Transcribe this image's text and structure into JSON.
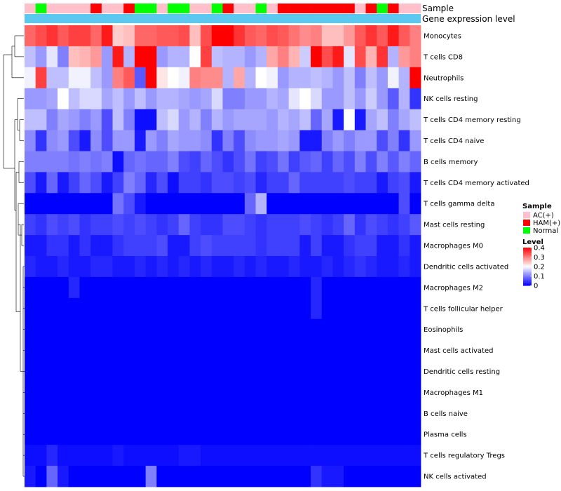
{
  "chart_data": {
    "type": "heatmap",
    "column_annotations": [
      {
        "name": "Sample",
        "label": "Sample"
      },
      {
        "name": "Gene expression level",
        "label": "Gene expression level"
      }
    ],
    "sample_groups": [
      "AC(+)",
      "Normal",
      "AC(+)",
      "AC(+)",
      "AC(+)",
      "AC(+)",
      "HAM(+)",
      "AC(+)",
      "AC(+)",
      "HAM(+)",
      "Normal",
      "Normal",
      "AC(+)",
      "Normal",
      "Normal",
      "AC(+)",
      "AC(+)",
      "Normal",
      "HAM(+)",
      "AC(+)",
      "AC(+)",
      "Normal",
      "AC(+)",
      "HAM(+)",
      "HAM(+)",
      "HAM(+)",
      "HAM(+)",
      "HAM(+)",
      "HAM(+)",
      "HAM(+)",
      "AC(+)",
      "HAM(+)",
      "Normal",
      "HAM(+)",
      "AC(+)",
      "AC(+)"
    ],
    "rows": [
      "Monocytes",
      "T cells CD8",
      "Neutrophils",
      "NK cells resting",
      "T cells CD4 memory resting",
      "T cells CD4 naive",
      "B cells memory",
      "T cells CD4 memory activated",
      "T cells gamma delta",
      "Mast cells resting",
      "Macrophages M0",
      "Dendritic cells activated",
      "Macrophages M2",
      "T cells follicular helper",
      "Eosinophils",
      "Mast cells activated",
      "Dendritic cells resting",
      "Macrophages M1",
      "B cells naive",
      "Plasma cells",
      "T cells regulatory  Tregs",
      "NK cells activated"
    ],
    "values": [
      [
        0.32,
        0.34,
        0.36,
        0.33,
        0.35,
        0.35,
        0.32,
        0.38,
        0.24,
        0.25,
        0.32,
        0.32,
        0.33,
        0.33,
        0.34,
        0.25,
        0.34,
        0.4,
        0.4,
        0.36,
        0.33,
        0.32,
        0.34,
        0.33,
        0.31,
        0.29,
        0.3,
        0.25,
        0.25,
        0.28,
        0.33,
        0.36,
        0.33,
        0.38,
        0.33,
        0.3
      ],
      [
        0.15,
        0.12,
        0.18,
        0.1,
        0.25,
        0.26,
        0.28,
        0.12,
        0.38,
        0.14,
        0.4,
        0.4,
        0.12,
        0.14,
        0.14,
        0.2,
        0.35,
        0.15,
        0.14,
        0.14,
        0.12,
        0.14,
        0.27,
        0.3,
        0.26,
        0.16,
        0.4,
        0.34,
        0.38,
        0.18,
        0.34,
        0.26,
        0.36,
        0.14,
        0.28,
        0.3
      ],
      [
        0.19,
        0.35,
        0.15,
        0.15,
        0.19,
        0.19,
        0.15,
        0.12,
        0.3,
        0.33,
        0.07,
        0.4,
        0.22,
        0.2,
        0.19,
        0.3,
        0.29,
        0.29,
        0.14,
        0.27,
        0.14,
        0.2,
        0.19,
        0.12,
        0.14,
        0.14,
        0.15,
        0.14,
        0.12,
        0.15,
        0.1,
        0.15,
        0.12,
        0.19,
        0.14,
        0.4
      ],
      [
        0.12,
        0.12,
        0.13,
        0.2,
        0.15,
        0.17,
        0.17,
        0.13,
        0.15,
        0.12,
        0.15,
        0.12,
        0.14,
        0.14,
        0.13,
        0.12,
        0.13,
        0.17,
        0.1,
        0.1,
        0.12,
        0.12,
        0.14,
        0.13,
        0.18,
        0.2,
        0.17,
        0.12,
        0.12,
        0.15,
        0.12,
        0.16,
        0.12,
        0.07,
        0.14,
        0.04
      ],
      [
        0.15,
        0.15,
        0.1,
        0.13,
        0.12,
        0.1,
        0.12,
        0.06,
        0.15,
        0.1,
        0.01,
        0.01,
        0.15,
        0.17,
        0.12,
        0.14,
        0.1,
        0.14,
        0.12,
        0.13,
        0.13,
        0.13,
        0.12,
        0.14,
        0.13,
        0.15,
        0.08,
        0.13,
        0.02,
        0.2,
        0.02,
        0.13,
        0.15,
        0.1,
        0.13,
        0.15
      ],
      [
        0.11,
        0.04,
        0.11,
        0.12,
        0.06,
        0.02,
        0.11,
        0.06,
        0.12,
        0.12,
        0.02,
        0.12,
        0.1,
        0.13,
        0.12,
        0.12,
        0.11,
        0.04,
        0.1,
        0.06,
        0.11,
        0.12,
        0.12,
        0.13,
        0.12,
        0.02,
        0.02,
        0.1,
        0.12,
        0.1,
        0.12,
        0.12,
        0.06,
        0.1,
        0.04,
        0.12
      ],
      [
        0.1,
        0.1,
        0.1,
        0.1,
        0.09,
        0.1,
        0.09,
        0.1,
        0.01,
        0.08,
        0.09,
        0.08,
        0.08,
        0.1,
        0.06,
        0.05,
        0.08,
        0.06,
        0.04,
        0.06,
        0.09,
        0.05,
        0.06,
        0.09,
        0.05,
        0.07,
        0.08,
        0.05,
        0.08,
        0.06,
        0.1,
        0.06,
        0.1,
        0.07,
        0.1,
        0.08
      ],
      [
        0.06,
        0.02,
        0.08,
        0.02,
        0.05,
        0.08,
        0.06,
        0.02,
        0.05,
        0.1,
        0.08,
        0.03,
        0.06,
        0.01,
        0.05,
        0.05,
        0.04,
        0.06,
        0.06,
        0.05,
        0.06,
        0.03,
        0.05,
        0.05,
        0.08,
        0.05,
        0.05,
        0.05,
        0.05,
        0.06,
        0.05,
        0.05,
        0.02,
        0.05,
        0.06,
        0.02
      ],
      [
        0.0,
        0.0,
        0.0,
        0.0,
        0.0,
        0.0,
        0.0,
        0.0,
        0.09,
        0.06,
        0.02,
        0.0,
        0.0,
        0.0,
        0.0,
        0.0,
        0.0,
        0.0,
        0.0,
        0.0,
        0.08,
        0.14,
        0.0,
        0.0,
        0.0,
        0.0,
        0.0,
        0.0,
        0.0,
        0.0,
        0.0,
        0.0,
        0.0,
        0.0,
        0.06,
        0.0
      ],
      [
        0.05,
        0.04,
        0.06,
        0.05,
        0.06,
        0.04,
        0.05,
        0.05,
        0.06,
        0.05,
        0.06,
        0.05,
        0.04,
        0.05,
        0.08,
        0.05,
        0.04,
        0.04,
        0.06,
        0.06,
        0.05,
        0.04,
        0.05,
        0.05,
        0.05,
        0.06,
        0.05,
        0.04,
        0.05,
        0.08,
        0.04,
        0.06,
        0.05,
        0.04,
        0.05,
        0.07
      ],
      [
        0.02,
        0.02,
        0.04,
        0.04,
        0.02,
        0.04,
        0.02,
        0.02,
        0.04,
        0.05,
        0.05,
        0.05,
        0.06,
        0.02,
        0.02,
        0.05,
        0.06,
        0.05,
        0.05,
        0.05,
        0.05,
        0.04,
        0.05,
        0.05,
        0.05,
        0.02,
        0.05,
        0.02,
        0.02,
        0.04,
        0.05,
        0.05,
        0.02,
        0.02,
        0.04,
        0.02
      ],
      [
        0.03,
        0.02,
        0.02,
        0.03,
        0.02,
        0.02,
        0.03,
        0.03,
        0.02,
        0.02,
        0.03,
        0.02,
        0.03,
        0.02,
        0.03,
        0.02,
        0.03,
        0.02,
        0.02,
        0.03,
        0.02,
        0.03,
        0.02,
        0.02,
        0.03,
        0.02,
        0.02,
        0.03,
        0.02,
        0.03,
        0.04,
        0.03,
        0.02,
        0.02,
        0.03,
        0.02
      ],
      [
        0.0,
        0.0,
        0.0,
        0.0,
        0.03,
        0.0,
        0.0,
        0.0,
        0.0,
        0.0,
        0.0,
        0.0,
        0.0,
        0.0,
        0.0,
        0.0,
        0.0,
        0.0,
        0.0,
        0.0,
        0.0,
        0.0,
        0.0,
        0.0,
        0.0,
        0.0,
        0.03,
        0.0,
        0.0,
        0.0,
        0.0,
        0.0,
        0.0,
        0.0,
        0.0,
        0.0
      ],
      [
        0.0,
        0.0,
        0.0,
        0.0,
        0.0,
        0.0,
        0.0,
        0.0,
        0.0,
        0.0,
        0.0,
        0.0,
        0.0,
        0.0,
        0.0,
        0.0,
        0.0,
        0.0,
        0.0,
        0.0,
        0.0,
        0.0,
        0.0,
        0.0,
        0.0,
        0.0,
        0.03,
        0.0,
        0.0,
        0.0,
        0.0,
        0.0,
        0.0,
        0.0,
        0.0,
        0.0
      ],
      [
        0.0,
        0.0,
        0.0,
        0.0,
        0.0,
        0.0,
        0.0,
        0.0,
        0.0,
        0.0,
        0.0,
        0.0,
        0.0,
        0.0,
        0.0,
        0.0,
        0.0,
        0.0,
        0.0,
        0.0,
        0.0,
        0.0,
        0.0,
        0.0,
        0.0,
        0.0,
        0.0,
        0.0,
        0.0,
        0.0,
        0.0,
        0.0,
        0.0,
        0.0,
        0.0,
        0.0
      ],
      [
        0.0,
        0.0,
        0.0,
        0.0,
        0.0,
        0.0,
        0.0,
        0.0,
        0.0,
        0.0,
        0.0,
        0.0,
        0.0,
        0.0,
        0.0,
        0.0,
        0.0,
        0.0,
        0.0,
        0.0,
        0.0,
        0.0,
        0.0,
        0.0,
        0.0,
        0.0,
        0.0,
        0.0,
        0.0,
        0.0,
        0.0,
        0.0,
        0.0,
        0.0,
        0.0,
        0.0
      ],
      [
        0.0,
        0.0,
        0.0,
        0.0,
        0.0,
        0.0,
        0.0,
        0.0,
        0.0,
        0.0,
        0.0,
        0.0,
        0.0,
        0.0,
        0.0,
        0.0,
        0.0,
        0.0,
        0.0,
        0.0,
        0.0,
        0.0,
        0.0,
        0.0,
        0.0,
        0.0,
        0.0,
        0.0,
        0.0,
        0.0,
        0.0,
        0.0,
        0.0,
        0.0,
        0.0,
        0.0
      ],
      [
        0.0,
        0.0,
        0.0,
        0.0,
        0.0,
        0.0,
        0.0,
        0.0,
        0.0,
        0.0,
        0.0,
        0.0,
        0.0,
        0.0,
        0.0,
        0.0,
        0.0,
        0.0,
        0.0,
        0.0,
        0.0,
        0.0,
        0.0,
        0.0,
        0.0,
        0.0,
        0.0,
        0.0,
        0.0,
        0.0,
        0.0,
        0.0,
        0.0,
        0.0,
        0.0,
        0.0
      ],
      [
        0.0,
        0.0,
        0.0,
        0.0,
        0.0,
        0.0,
        0.0,
        0.0,
        0.0,
        0.0,
        0.0,
        0.0,
        0.0,
        0.0,
        0.0,
        0.0,
        0.0,
        0.0,
        0.0,
        0.0,
        0.0,
        0.0,
        0.0,
        0.0,
        0.0,
        0.0,
        0.0,
        0.0,
        0.0,
        0.0,
        0.0,
        0.0,
        0.0,
        0.0,
        0.0,
        0.0
      ],
      [
        0.0,
        0.0,
        0.0,
        0.0,
        0.0,
        0.0,
        0.0,
        0.0,
        0.0,
        0.0,
        0.0,
        0.0,
        0.0,
        0.0,
        0.0,
        0.0,
        0.0,
        0.0,
        0.0,
        0.0,
        0.0,
        0.0,
        0.0,
        0.0,
        0.0,
        0.0,
        0.0,
        0.0,
        0.0,
        0.0,
        0.0,
        0.0,
        0.0,
        0.0,
        0.0,
        0.0
      ],
      [
        0.01,
        0.01,
        0.03,
        0.01,
        0.01,
        0.01,
        0.01,
        0.01,
        0.02,
        0.01,
        0.01,
        0.01,
        0.01,
        0.01,
        0.02,
        0.02,
        0.01,
        0.01,
        0.01,
        0.01,
        0.01,
        0.01,
        0.01,
        0.01,
        0.01,
        0.01,
        0.01,
        0.01,
        0.01,
        0.01,
        0.01,
        0.01,
        0.01,
        0.01,
        0.01,
        0.01
      ],
      [
        0.02,
        0.0,
        0.08,
        0.02,
        0.0,
        0.0,
        0.0,
        0.0,
        0.0,
        0.0,
        0.0,
        0.1,
        0.0,
        0.0,
        0.0,
        0.0,
        0.0,
        0.0,
        0.0,
        0.0,
        0.0,
        0.0,
        0.0,
        0.0,
        0.0,
        0.0,
        0.04,
        0.02,
        0.02,
        0.0,
        0.0,
        0.0,
        0.0,
        0.0,
        0.0,
        0.0
      ]
    ],
    "expression_level_color": "#5bc8f0",
    "color_scale": {
      "low": "#0000ff",
      "mid": "#ffffff",
      "high": "#ff0000",
      "min": 0,
      "mid_value": 0.2,
      "max": 0.4
    },
    "sample_colors": {
      "AC(+)": "#ffc0cb",
      "HAM(+)": "#ff0000",
      "Normal": "#00ff00"
    },
    "legend_sample": {
      "title": "Sample",
      "entries": [
        "AC(+)",
        "HAM(+)",
        "Normal"
      ]
    },
    "legend_level": {
      "title": "Level",
      "ticks": [
        "0.4",
        "0.3",
        "0.2",
        "0.1",
        "0"
      ],
      "tick_values": [
        0.4,
        0.3,
        0.2,
        0.1,
        0
      ]
    },
    "dendrogram": "row clustering tree",
    "legend_placement": "right"
  }
}
